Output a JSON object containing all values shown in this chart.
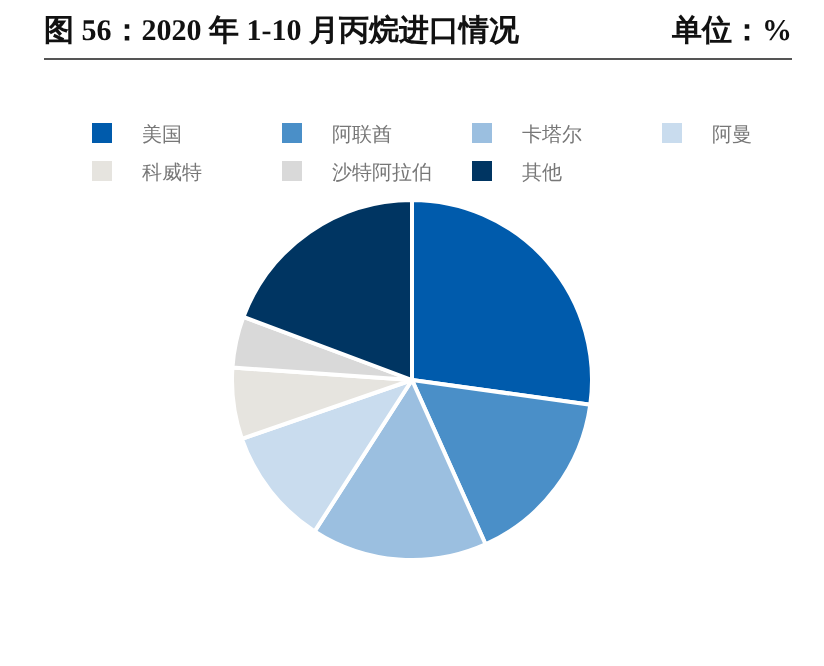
{
  "chart_data": {
    "type": "pie",
    "title": "图 56：2020 年 1-10 月丙烷进口情况",
    "subtitle": "单位：%",
    "categories": [
      "美国",
      "阿联酋",
      "卡塔尔",
      "阿曼",
      "科威特",
      "沙特阿拉伯",
      "其他"
    ],
    "values": [
      27.2,
      16.1,
      15.8,
      10.6,
      6.4,
      4.6,
      19.3
    ],
    "colors": [
      "#005bac",
      "#4a8fc8",
      "#9bbfe0",
      "#c9dcee",
      "#e6e4df",
      "#d9d9d9",
      "#003562"
    ],
    "legend": "top"
  }
}
